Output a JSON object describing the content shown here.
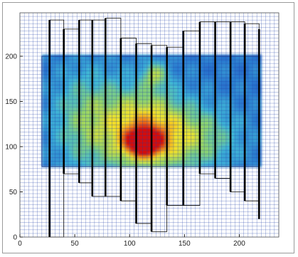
{
  "chart_data": {
    "type": "heatmap",
    "title": "",
    "xlabel": "",
    "ylabel": "",
    "xlim": [
      0,
      236
    ],
    "ylim": [
      0,
      248
    ],
    "x_ticks": [
      0,
      50,
      100,
      150,
      200
    ],
    "y_ticks": [
      0,
      50,
      100,
      150,
      200
    ],
    "grid": true,
    "grid_spacing": 4,
    "grid_color": "#1f3fa8",
    "colormap": [
      "#1e3fb0",
      "#2a78cf",
      "#3fb6d6",
      "#8fd36b",
      "#f2e22a",
      "#f07c1a",
      "#d21010"
    ],
    "heat_region": {
      "x": [
        20,
        218
      ],
      "y": [
        78,
        200
      ]
    },
    "hotspots": [
      {
        "x": 113,
        "y": 105,
        "intensity": 1.0,
        "spread_x": 10,
        "spread_y": 9
      },
      {
        "x": 112,
        "y": 118,
        "intensity": 0.55,
        "spread_x": 26,
        "spread_y": 32
      },
      {
        "x": 123,
        "y": 180,
        "intensity": 0.3,
        "spread_x": 8,
        "spread_y": 10
      },
      {
        "x": 60,
        "y": 130,
        "intensity": 0.28,
        "spread_x": 22,
        "spread_y": 40
      },
      {
        "x": 160,
        "y": 110,
        "intensity": 0.3,
        "spread_x": 28,
        "spread_y": 25
      }
    ],
    "bars": [
      {
        "x": 27,
        "y_top": 240,
        "y_bottom": 0
      },
      {
        "x": 40,
        "y_top": 230,
        "y_bottom": 70
      },
      {
        "x": 54,
        "y_top": 240,
        "y_bottom": 60
      },
      {
        "x": 66,
        "y_top": 240,
        "y_bottom": 45
      },
      {
        "x": 78,
        "y_top": 242,
        "y_bottom": 45
      },
      {
        "x": 92,
        "y_top": 220,
        "y_bottom": 40
      },
      {
        "x": 106,
        "y_top": 214,
        "y_bottom": 15
      },
      {
        "x": 120,
        "y_top": 212,
        "y_bottom": 6
      },
      {
        "x": 134,
        "y_top": 210,
        "y_bottom": 35
      },
      {
        "x": 149,
        "y_top": 228,
        "y_bottom": 35
      },
      {
        "x": 164,
        "y_top": 238,
        "y_bottom": 70
      },
      {
        "x": 178,
        "y_top": 238,
        "y_bottom": 65
      },
      {
        "x": 192,
        "y_top": 238,
        "y_bottom": 50
      },
      {
        "x": 205,
        "y_top": 236,
        "y_bottom": 40
      },
      {
        "x": 218,
        "y_top": 230,
        "y_bottom": 20
      }
    ]
  }
}
